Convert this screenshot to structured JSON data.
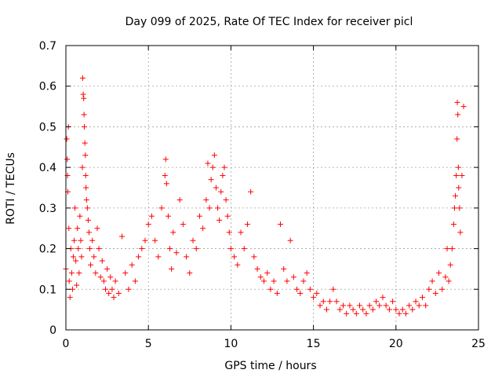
{
  "chart_data": {
    "type": "scatter",
    "title": "Day 099 of 2025, Rate Of TEC Index for receiver picl",
    "xlabel": "GPS time / hours",
    "ylabel": "ROTI / TECUs",
    "xlim": [
      0,
      25
    ],
    "ylim": [
      0,
      0.7
    ],
    "xticks": [
      "0",
      "5",
      "10",
      "15",
      "20",
      "25"
    ],
    "yticks": [
      "0",
      "0.1",
      "0.2",
      "0.3",
      "0.4",
      "0.5",
      "0.6",
      "0.7"
    ],
    "grid": true,
    "marker": "plus",
    "color": "#ff0000",
    "series": [
      {
        "points": [
          [
            0.0,
            0.15
          ],
          [
            0.05,
            0.47
          ],
          [
            0.08,
            0.42
          ],
          [
            0.1,
            0.38
          ],
          [
            0.12,
            0.34
          ],
          [
            0.15,
            0.5
          ],
          [
            0.18,
            0.25
          ],
          [
            0.2,
            0.12
          ],
          [
            0.25,
            0.08
          ],
          [
            0.3,
            0.2
          ],
          [
            0.35,
            0.14
          ],
          [
            0.4,
            0.1
          ],
          [
            0.45,
            0.18
          ],
          [
            0.5,
            0.22
          ],
          [
            0.55,
            0.3
          ],
          [
            0.6,
            0.17
          ],
          [
            0.65,
            0.11
          ],
          [
            0.7,
            0.25
          ],
          [
            0.75,
            0.2
          ],
          [
            0.8,
            0.14
          ],
          [
            0.85,
            0.28
          ],
          [
            0.9,
            0.22
          ],
          [
            0.95,
            0.18
          ],
          [
            1.0,
            0.4
          ],
          [
            1.02,
            0.62
          ],
          [
            1.05,
            0.58
          ],
          [
            1.08,
            0.57
          ],
          [
            1.1,
            0.53
          ],
          [
            1.12,
            0.5
          ],
          [
            1.15,
            0.46
          ],
          [
            1.18,
            0.43
          ],
          [
            1.2,
            0.38
          ],
          [
            1.22,
            0.35
          ],
          [
            1.25,
            0.32
          ],
          [
            1.3,
            0.3
          ],
          [
            1.35,
            0.27
          ],
          [
            1.4,
            0.24
          ],
          [
            1.45,
            0.2
          ],
          [
            1.5,
            0.16
          ],
          [
            1.6,
            0.22
          ],
          [
            1.7,
            0.18
          ],
          [
            1.8,
            0.14
          ],
          [
            1.9,
            0.25
          ],
          [
            2.0,
            0.2
          ],
          [
            2.1,
            0.13
          ],
          [
            2.2,
            0.17
          ],
          [
            2.3,
            0.12
          ],
          [
            2.4,
            0.1
          ],
          [
            2.5,
            0.15
          ],
          [
            2.6,
            0.09
          ],
          [
            2.7,
            0.13
          ],
          [
            2.8,
            0.1
          ],
          [
            2.9,
            0.08
          ],
          [
            3.0,
            0.12
          ],
          [
            3.2,
            0.09
          ],
          [
            3.4,
            0.23
          ],
          [
            3.6,
            0.14
          ],
          [
            3.8,
            0.1
          ],
          [
            4.0,
            0.16
          ],
          [
            4.2,
            0.12
          ],
          [
            4.4,
            0.18
          ],
          [
            4.6,
            0.2
          ],
          [
            4.8,
            0.22
          ],
          [
            5.0,
            0.26
          ],
          [
            5.2,
            0.28
          ],
          [
            5.4,
            0.22
          ],
          [
            5.6,
            0.18
          ],
          [
            5.8,
            0.3
          ],
          [
            6.0,
            0.38
          ],
          [
            6.05,
            0.42
          ],
          [
            6.1,
            0.36
          ],
          [
            6.2,
            0.28
          ],
          [
            6.3,
            0.2
          ],
          [
            6.4,
            0.15
          ],
          [
            6.5,
            0.24
          ],
          [
            6.7,
            0.19
          ],
          [
            6.9,
            0.32
          ],
          [
            7.1,
            0.26
          ],
          [
            7.3,
            0.18
          ],
          [
            7.5,
            0.14
          ],
          [
            7.7,
            0.22
          ],
          [
            7.9,
            0.2
          ],
          [
            8.1,
            0.28
          ],
          [
            8.3,
            0.25
          ],
          [
            8.5,
            0.32
          ],
          [
            8.6,
            0.41
          ],
          [
            8.7,
            0.3
          ],
          [
            8.8,
            0.37
          ],
          [
            8.9,
            0.4
          ],
          [
            9.0,
            0.43
          ],
          [
            9.1,
            0.35
          ],
          [
            9.2,
            0.3
          ],
          [
            9.3,
            0.27
          ],
          [
            9.4,
            0.34
          ],
          [
            9.5,
            0.38
          ],
          [
            9.6,
            0.4
          ],
          [
            9.7,
            0.32
          ],
          [
            9.8,
            0.28
          ],
          [
            9.9,
            0.24
          ],
          [
            10.0,
            0.2
          ],
          [
            10.2,
            0.18
          ],
          [
            10.4,
            0.16
          ],
          [
            10.6,
            0.24
          ],
          [
            10.8,
            0.2
          ],
          [
            11.0,
            0.26
          ],
          [
            11.2,
            0.34
          ],
          [
            11.4,
            0.18
          ],
          [
            11.6,
            0.15
          ],
          [
            11.8,
            0.13
          ],
          [
            12.0,
            0.12
          ],
          [
            12.2,
            0.14
          ],
          [
            12.4,
            0.1
          ],
          [
            12.6,
            0.12
          ],
          [
            12.8,
            0.09
          ],
          [
            13.0,
            0.26
          ],
          [
            13.2,
            0.15
          ],
          [
            13.4,
            0.12
          ],
          [
            13.6,
            0.22
          ],
          [
            13.8,
            0.13
          ],
          [
            14.0,
            0.1
          ],
          [
            14.2,
            0.09
          ],
          [
            14.4,
            0.12
          ],
          [
            14.6,
            0.14
          ],
          [
            14.8,
            0.1
          ],
          [
            15.0,
            0.08
          ],
          [
            15.2,
            0.09
          ],
          [
            15.4,
            0.06
          ],
          [
            15.6,
            0.07
          ],
          [
            15.8,
            0.05
          ],
          [
            16.0,
            0.07
          ],
          [
            16.2,
            0.1
          ],
          [
            16.4,
            0.07
          ],
          [
            16.6,
            0.05
          ],
          [
            16.8,
            0.06
          ],
          [
            17.0,
            0.04
          ],
          [
            17.2,
            0.06
          ],
          [
            17.4,
            0.05
          ],
          [
            17.6,
            0.04
          ],
          [
            17.8,
            0.06
          ],
          [
            18.0,
            0.05
          ],
          [
            18.2,
            0.04
          ],
          [
            18.4,
            0.06
          ],
          [
            18.6,
            0.05
          ],
          [
            18.8,
            0.07
          ],
          [
            19.0,
            0.06
          ],
          [
            19.2,
            0.08
          ],
          [
            19.4,
            0.06
          ],
          [
            19.6,
            0.05
          ],
          [
            19.8,
            0.07
          ],
          [
            20.0,
            0.05
          ],
          [
            20.2,
            0.04
          ],
          [
            20.4,
            0.05
          ],
          [
            20.6,
            0.04
          ],
          [
            20.8,
            0.06
          ],
          [
            21.0,
            0.05
          ],
          [
            21.2,
            0.07
          ],
          [
            21.4,
            0.06
          ],
          [
            21.6,
            0.08
          ],
          [
            21.8,
            0.06
          ],
          [
            22.0,
            0.1
          ],
          [
            22.2,
            0.12
          ],
          [
            22.4,
            0.09
          ],
          [
            22.6,
            0.14
          ],
          [
            22.8,
            0.1
          ],
          [
            23.0,
            0.13
          ],
          [
            23.1,
            0.2
          ],
          [
            23.2,
            0.12
          ],
          [
            23.3,
            0.16
          ],
          [
            23.4,
            0.2
          ],
          [
            23.5,
            0.26
          ],
          [
            23.55,
            0.3
          ],
          [
            23.6,
            0.33
          ],
          [
            23.65,
            0.38
          ],
          [
            23.7,
            0.47
          ],
          [
            23.72,
            0.56
          ],
          [
            23.75,
            0.53
          ],
          [
            23.78,
            0.4
          ],
          [
            23.8,
            0.35
          ],
          [
            23.85,
            0.3
          ],
          [
            23.9,
            0.24
          ],
          [
            24.0,
            0.38
          ],
          [
            24.1,
            0.55
          ]
        ]
      }
    ]
  }
}
